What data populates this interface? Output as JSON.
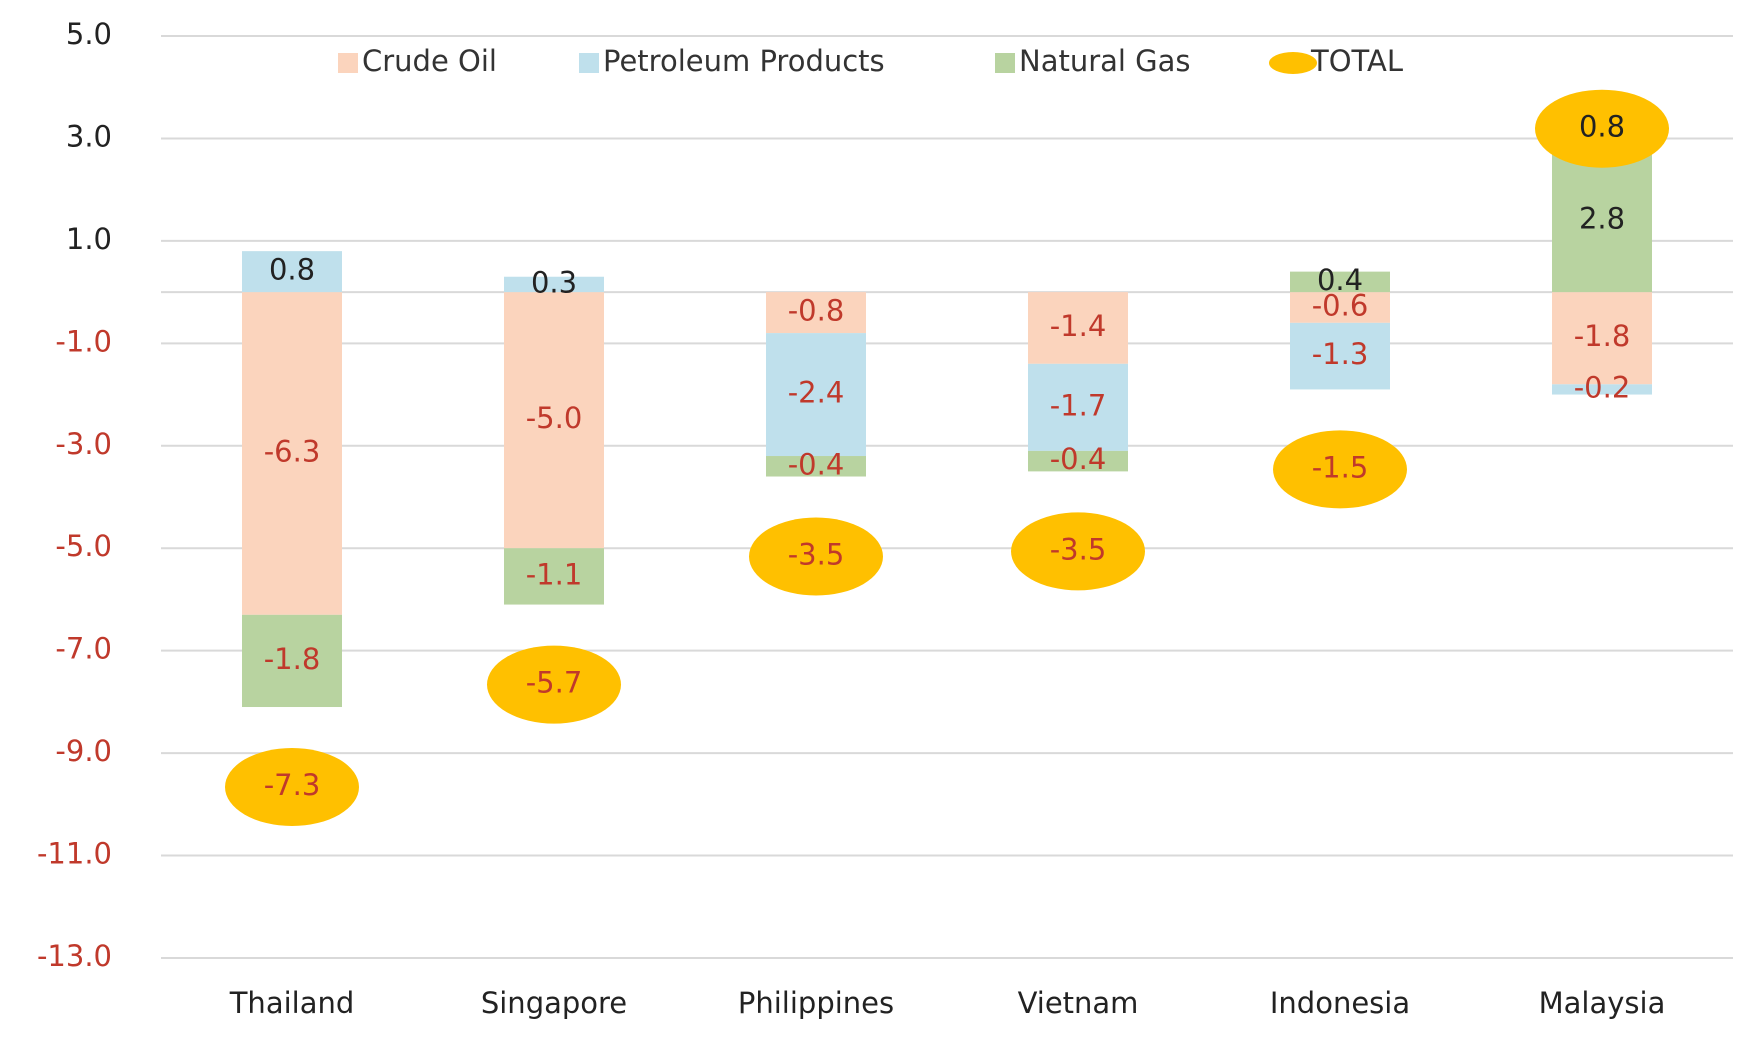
{
  "chart_data": {
    "type": "bar",
    "stacked": true,
    "categories": [
      "Thailand",
      "Singapore",
      "Philippines",
      "Vietnam",
      "Indonesia",
      "Malaysia"
    ],
    "series": [
      {
        "name": "Crude Oil",
        "color": "#fbd4bd",
        "values": [
          -6.3,
          -5.0,
          -0.8,
          -1.4,
          -0.6,
          -1.8
        ],
        "value_labels": [
          "-6.3",
          "-5.0",
          "-0.8",
          "-1.4",
          "-0.6",
          "-1.8"
        ]
      },
      {
        "name": "Petroleum Products",
        "color": "#bfe0ec",
        "values": [
          0.8,
          0.3,
          -2.4,
          -1.7,
          -1.3,
          -0.2
        ],
        "value_labels": [
          "0.8",
          "0.3",
          "-2.4",
          "-1.7",
          "-1.3",
          "-0.2"
        ]
      },
      {
        "name": "Natural Gas",
        "color": "#b8d3a0",
        "values": [
          -1.8,
          -1.1,
          -0.4,
          -0.4,
          0.4,
          2.8
        ],
        "value_labels": [
          "-1.8",
          "-1.1",
          "-0.4",
          "-0.4",
          "0.4",
          "2.8"
        ]
      },
      {
        "name": "TOTAL",
        "color": "#ffc000",
        "marker": "ellipse",
        "values": [
          -7.3,
          -5.7,
          -3.5,
          -3.5,
          -1.5,
          0.8
        ],
        "value_labels": [
          "-7.3",
          "-5.7",
          "-3.5",
          "-3.5",
          "-1.5",
          "0.8"
        ]
      }
    ],
    "ylim": [
      -13,
      5
    ],
    "yticks": [
      {
        "value": 5,
        "label": "5.0"
      },
      {
        "value": 3,
        "label": "3.0"
      },
      {
        "value": 1,
        "label": "1.0"
      },
      {
        "value": -1,
        "label": "-1.0"
      },
      {
        "value": -3,
        "label": "-3.0"
      },
      {
        "value": -5,
        "label": "-5.0"
      },
      {
        "value": -7,
        "label": "-7.0"
      },
      {
        "value": -9,
        "label": "-9.0"
      },
      {
        "value": -11,
        "label": "-11.0"
      },
      {
        "value": -13,
        "label": "-13.0"
      }
    ],
    "grid": true,
    "negative_color": "#c0392b",
    "legend": "top"
  }
}
